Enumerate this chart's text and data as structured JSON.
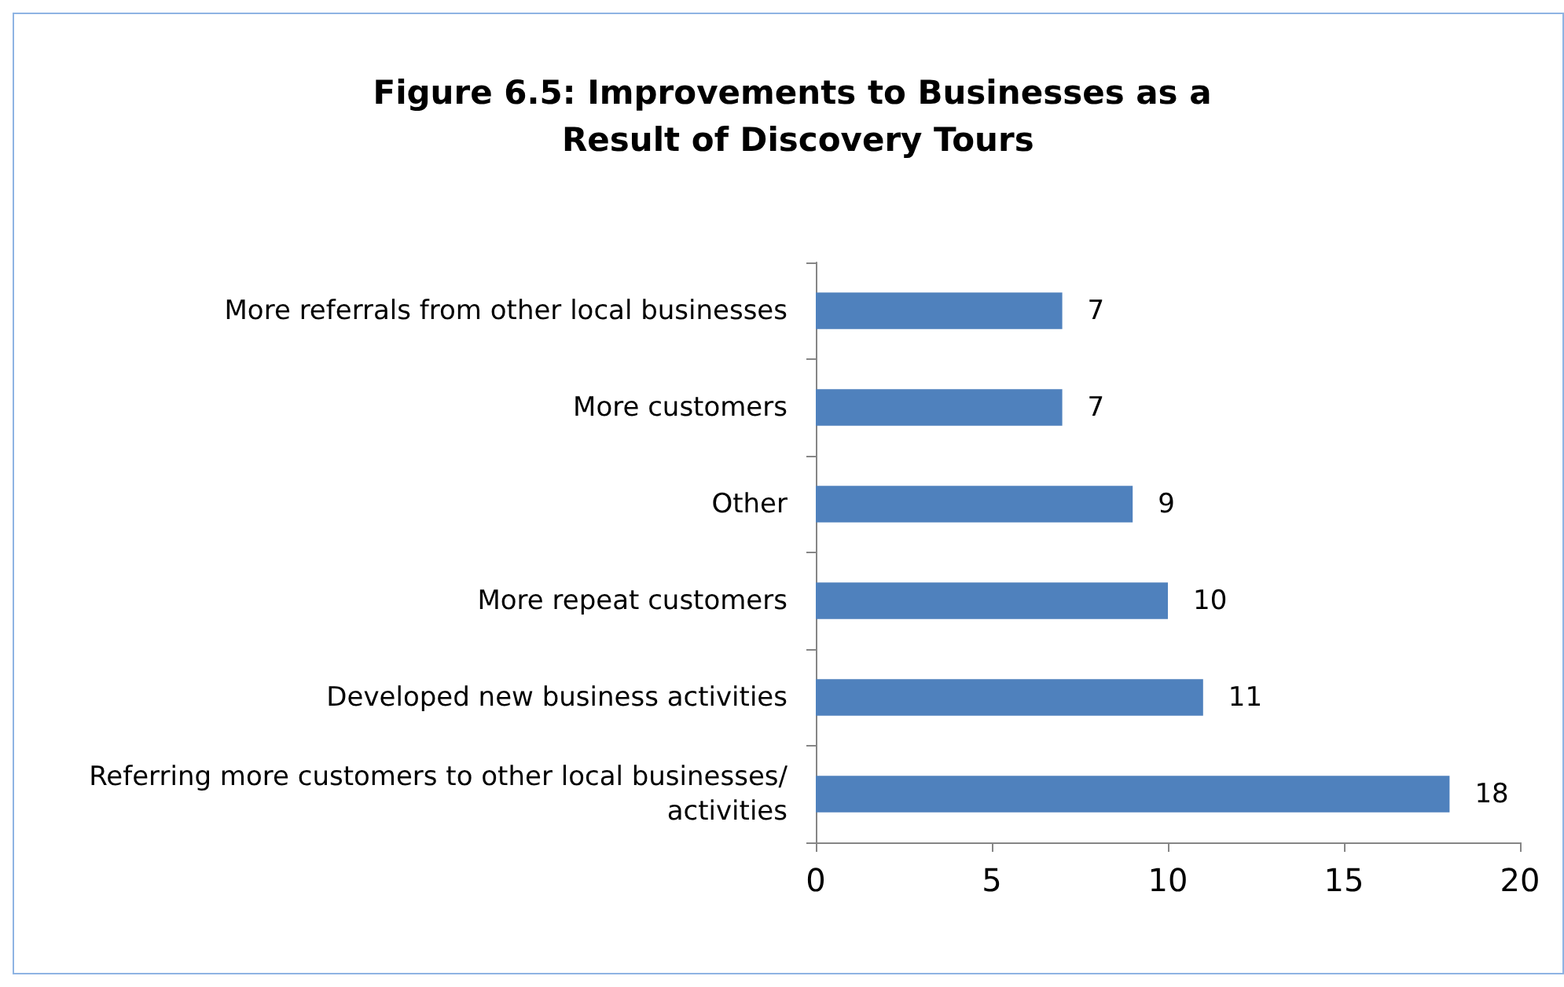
{
  "chart_data": {
    "type": "bar",
    "orientation": "horizontal",
    "title": "Figure 6.5: Improvements to Businesses as a Result of Discovery Tours",
    "categories": [
      "More referrals from other local businesses",
      "More customers",
      "Other",
      "More repeat customers",
      "Developed new business activities",
      "Referring more customers to other local businesses/activities"
    ],
    "values": [
      7,
      7,
      9,
      10,
      11,
      18
    ],
    "color": "#4f81bd",
    "xlim": [
      0,
      20
    ],
    "xticks": [
      0,
      5,
      10,
      15,
      20
    ],
    "grid": false,
    "data_labels": true
  }
}
